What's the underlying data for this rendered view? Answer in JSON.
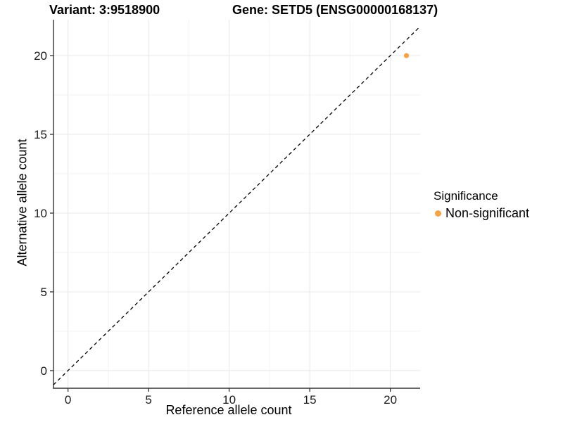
{
  "title": {
    "variant": "Variant: 3:9518900",
    "gene": "Gene: SETD5 (ENSG00000168137)"
  },
  "legend": {
    "title": "Significance",
    "items": [
      {
        "label": "Non-significant",
        "color": "#F9A243"
      }
    ]
  },
  "chart_data": {
    "type": "scatter",
    "title": "Variant: 3:9518900  Gene: SETD5 (ENSG00000168137)",
    "xlabel": "Reference allele count",
    "ylabel": "Alternative allele count",
    "xlim": [
      -0.9,
      21.85
    ],
    "ylim": [
      -1.12,
      22.28
    ],
    "x_ticks": [
      0,
      5,
      10,
      15,
      20
    ],
    "y_ticks": [
      0,
      5,
      10,
      15,
      20
    ],
    "x_minor_ticks": [
      2.5,
      7.5,
      12.5,
      17.5
    ],
    "y_minor_ticks": [
      2.5,
      7.5,
      12.5,
      17.5
    ],
    "grid": true,
    "legend_position": "right",
    "series": [
      {
        "name": "Non-significant",
        "color": "#F9A243",
        "points": [
          {
            "x": 21,
            "y": 20
          }
        ]
      }
    ],
    "reference_line": {
      "kind": "identity",
      "dashed": true,
      "color": "#000000"
    }
  },
  "colors": {
    "background": "#FFFFFF",
    "grid_major": "#E8E8E8",
    "grid_minor": "#F2F2F2",
    "axis_line": "#333333",
    "tick_text": "#1A1A1A",
    "point": "#F9A243"
  }
}
